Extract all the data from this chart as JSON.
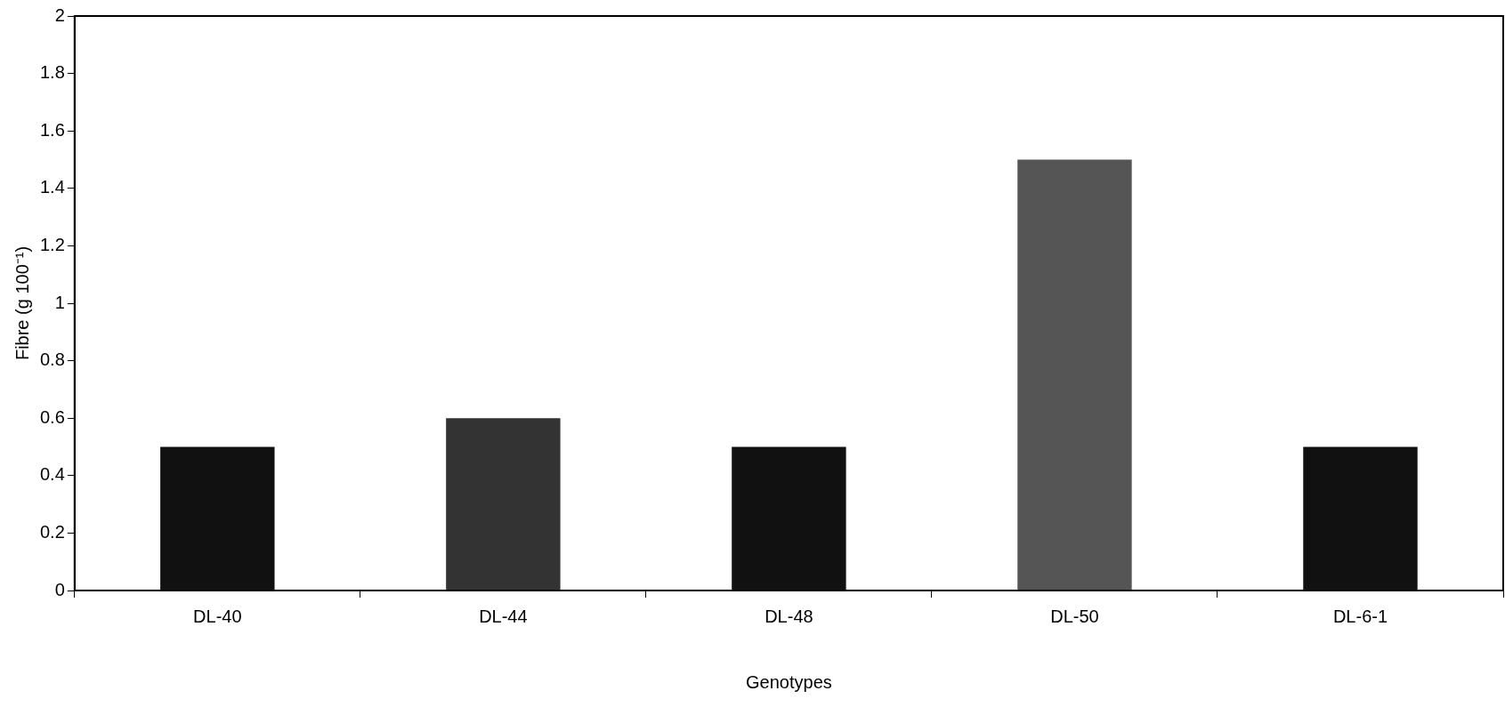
{
  "chart_data": {
    "type": "bar",
    "xlabel": "Genotypes",
    "ylabel": "Fibre (g 100⁻¹)",
    "categories": [
      "DL-40",
      "DL-44",
      "DL-48",
      "DL-50",
      "DL-6-1"
    ],
    "values": [
      0.5,
      0.6,
      0.5,
      1.5,
      0.5
    ],
    "colors": [
      "#111111",
      "#333333",
      "#111111",
      "#555555",
      "#111111"
    ],
    "ylim": [
      0,
      2
    ],
    "yticks": [
      0,
      0.2,
      0.4,
      0.6,
      0.8,
      1,
      1.2,
      1.4,
      1.6,
      1.8,
      2
    ],
    "grid": false,
    "legend": false
  }
}
